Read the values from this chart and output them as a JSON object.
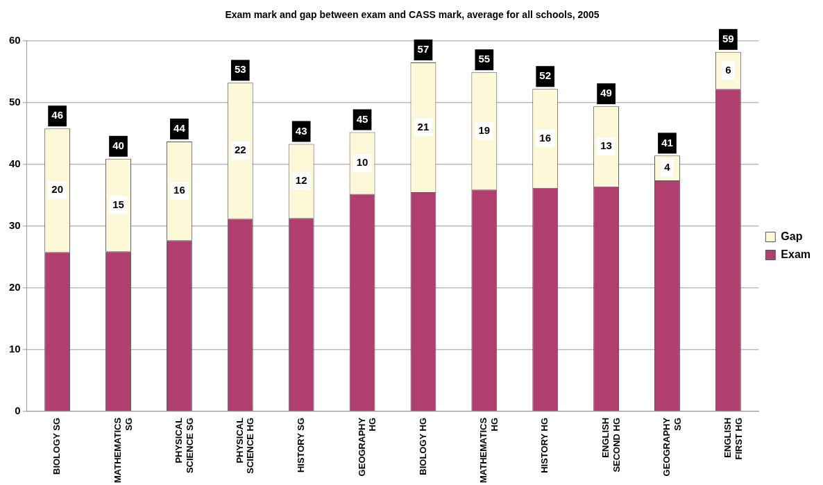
{
  "chart_data": {
    "type": "bar",
    "stacked": true,
    "title": "Exam mark and gap between exam and CASS mark, average for all schools, 2005",
    "categories": [
      "BIOLOGY SG",
      "MATHEMATICS SG",
      "PHYSICAL SCIENCE SG",
      "PHYSICAL SCIENCE HG",
      "HISTORY SG",
      "GEOGRAPHY HG",
      "BIOLOGY HG",
      "MATHEMATICS HG",
      "HISTORY HG",
      "ENGLISH SECOND HG",
      "GEOGRAPHY SG",
      "ENGLISH FIRST HG"
    ],
    "series": [
      {
        "name": "Exam",
        "color": "#b03f70",
        "values": [
          25.8,
          25.9,
          27.7,
          31.2,
          31.3,
          35.2,
          35.5,
          35.9,
          36.2,
          36.4,
          37.4,
          52.2
        ]
      },
      {
        "name": "Gap",
        "color": "#fdf8d8",
        "values": [
          20,
          15,
          16,
          22,
          12,
          10,
          21,
          19,
          16,
          13,
          4,
          6
        ],
        "value_labels": [
          "20",
          "15",
          "16",
          "22",
          "12",
          "10",
          "21",
          "19",
          "16",
          "13",
          "4",
          "6"
        ]
      }
    ],
    "totals": [
      "46",
      "40",
      "44",
      "53",
      "43",
      "45",
      "57",
      "55",
      "52",
      "49",
      "41",
      "59"
    ],
    "ylim": [
      0,
      60
    ],
    "yticks": [
      0,
      10,
      20,
      30,
      40,
      50,
      60
    ],
    "grid": "y",
    "legend": "right"
  }
}
